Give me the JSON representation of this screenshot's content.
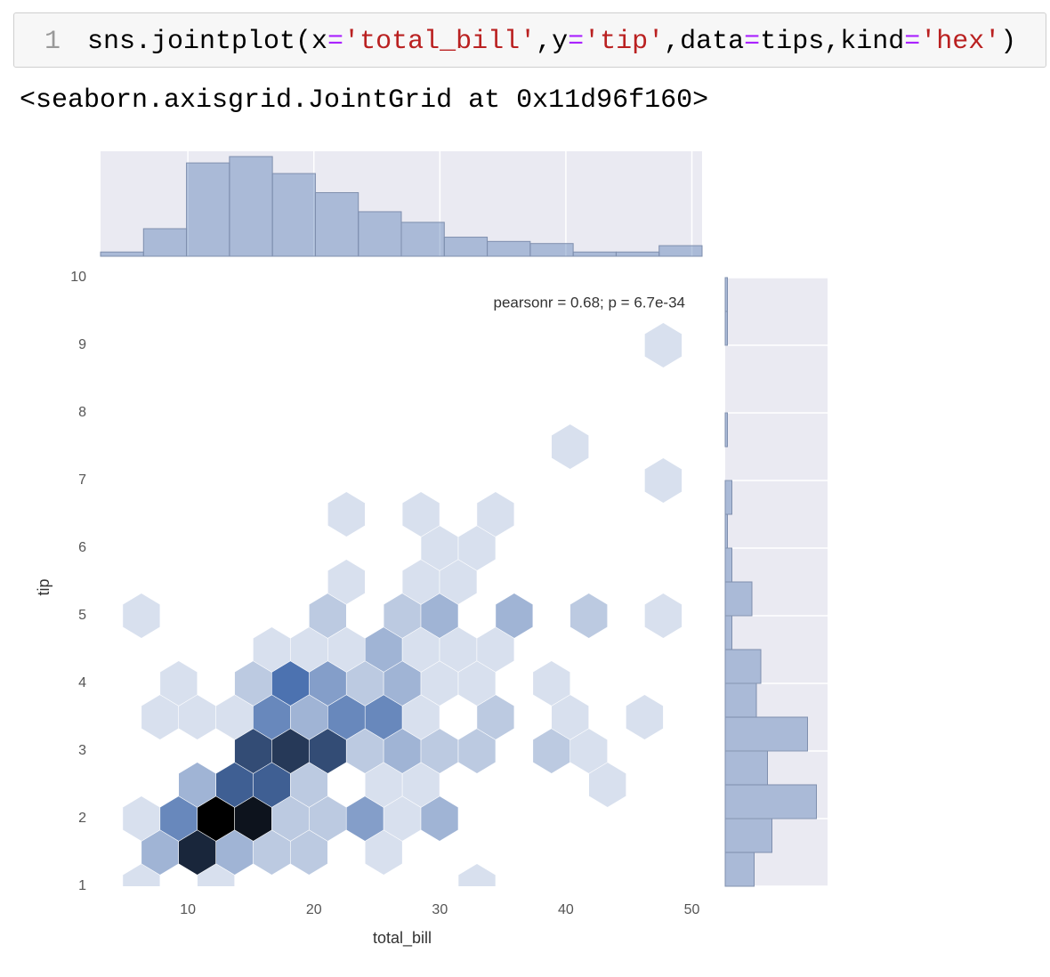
{
  "code": {
    "line_number": "1",
    "tokens": [
      {
        "text": "sns.jointplot(x",
        "kind": "plain"
      },
      {
        "text": "=",
        "kind": "operator"
      },
      {
        "text": "'total_bill'",
        "kind": "string"
      },
      {
        "text": ",y",
        "kind": "plain"
      },
      {
        "text": "=",
        "kind": "operator"
      },
      {
        "text": "'tip'",
        "kind": "string"
      },
      {
        "text": ",data",
        "kind": "plain"
      },
      {
        "text": "=",
        "kind": "operator"
      },
      {
        "text": "tips,kind",
        "kind": "plain"
      },
      {
        "text": "=",
        "kind": "operator"
      },
      {
        "text": "'hex'",
        "kind": "string"
      },
      {
        "text": ")",
        "kind": "plain"
      }
    ],
    "colors": {
      "plain": "#000000",
      "operator": "#aa22ff",
      "string": "#ba2121"
    }
  },
  "output": "<seaborn.axisgrid.JointGrid at 0x11d96f160>",
  "chart_data": {
    "type": "hexbin",
    "xlabel": "total_bill",
    "ylabel": "tip",
    "annotation": "pearsonr = 0.68; p = 6.7e-34",
    "xlim": [
      3.07,
      50.81
    ],
    "ylim": [
      1,
      10
    ],
    "xticks": [
      10,
      20,
      30,
      40,
      50
    ],
    "yticks": [
      1,
      2,
      3,
      4,
      5,
      6,
      7,
      8,
      9,
      10
    ],
    "color": "#4c72b0",
    "cmap": [
      "#f4f6fa",
      "#4c72b0",
      "#000000"
    ],
    "hexbin": {
      "x": [
        6.31,
        12.23,
        32.94,
        7.79,
        10.75,
        13.71,
        16.66,
        19.62,
        25.54,
        6.31,
        9.27,
        12.23,
        15.19,
        18.14,
        21.1,
        24.06,
        27.02,
        29.98,
        10.75,
        13.71,
        16.66,
        19.62,
        25.54,
        28.5,
        43.3,
        15.19,
        18.14,
        21.1,
        24.06,
        27.02,
        29.98,
        32.94,
        38.86,
        41.82,
        7.79,
        10.75,
        13.71,
        16.66,
        19.62,
        22.58,
        25.54,
        28.5,
        34.42,
        40.34,
        46.25,
        9.27,
        15.19,
        18.14,
        21.1,
        24.06,
        27.02,
        29.98,
        32.94,
        38.86,
        16.66,
        19.62,
        22.58,
        25.54,
        28.5,
        31.46,
        34.42,
        6.31,
        21.1,
        27.02,
        29.98,
        35.9,
        41.82,
        47.73,
        22.58,
        28.5,
        31.46,
        29.98,
        32.94,
        22.58,
        28.5,
        34.42,
        47.73,
        40.34,
        47.73
      ],
      "y": [
        1,
        1,
        1,
        1.5,
        1.5,
        1.5,
        1.5,
        1.5,
        1.5,
        2,
        2,
        2,
        2,
        2,
        2,
        2,
        2,
        2,
        2.5,
        2.5,
        2.5,
        2.5,
        2.5,
        2.5,
        2.5,
        3,
        3,
        3,
        3,
        3,
        3,
        3,
        3,
        3,
        3.5,
        3.5,
        3.5,
        3.5,
        3.5,
        3.5,
        3.5,
        3.5,
        3.5,
        3.5,
        3.5,
        4,
        4,
        4,
        4,
        4,
        4,
        4,
        4,
        4,
        4.5,
        4.5,
        4.5,
        4.5,
        4.5,
        4.5,
        4.5,
        5,
        5,
        5,
        5,
        5,
        5,
        5,
        5.5,
        5.5,
        5.5,
        6,
        6,
        6.5,
        6.5,
        6.5,
        7,
        7.5,
        9
      ],
      "counts": [
        1,
        1,
        1,
        3,
        10,
        3,
        2,
        2,
        1,
        1,
        5,
        12,
        11,
        2,
        2,
        4,
        1,
        3,
        3,
        7,
        7,
        2,
        1,
        1,
        1,
        8,
        9,
        8,
        2,
        3,
        2,
        2,
        2,
        1,
        1,
        1,
        1,
        5,
        3,
        5,
        5,
        1,
        2,
        1,
        1,
        1,
        2,
        6,
        4,
        2,
        3,
        1,
        1,
        1,
        1,
        1,
        1,
        3,
        1,
        1,
        1,
        1,
        2,
        2,
        3,
        3,
        2,
        1,
        1,
        1,
        1,
        1,
        1,
        1,
        1,
        1,
        1,
        1,
        1
      ]
    },
    "marginal_x": {
      "bins": [
        3.07,
        6.48,
        9.89,
        13.3,
        16.71,
        20.12,
        23.53,
        26.94,
        30.35,
        33.76,
        37.17,
        40.58,
        43.99,
        47.4,
        50.81
      ],
      "counts": [
        2,
        13,
        44,
        47,
        39,
        30,
        21,
        16,
        9,
        7,
        6,
        2,
        2,
        5
      ],
      "ylim": [
        0,
        49.5
      ]
    },
    "marginal_y": {
      "bins": [
        1,
        1.5,
        2,
        2.5,
        3,
        3.5,
        4,
        4.5,
        5,
        5.5,
        6,
        6.5,
        7,
        7.5,
        8,
        8.5,
        9,
        9.5,
        10
      ],
      "counts": [
        13,
        21,
        41,
        19,
        37,
        14,
        16,
        3,
        12,
        3,
        1,
        3,
        0,
        1,
        0,
        0,
        1,
        1
      ],
      "xlim": [
        0,
        46
      ]
    },
    "grid": true
  }
}
